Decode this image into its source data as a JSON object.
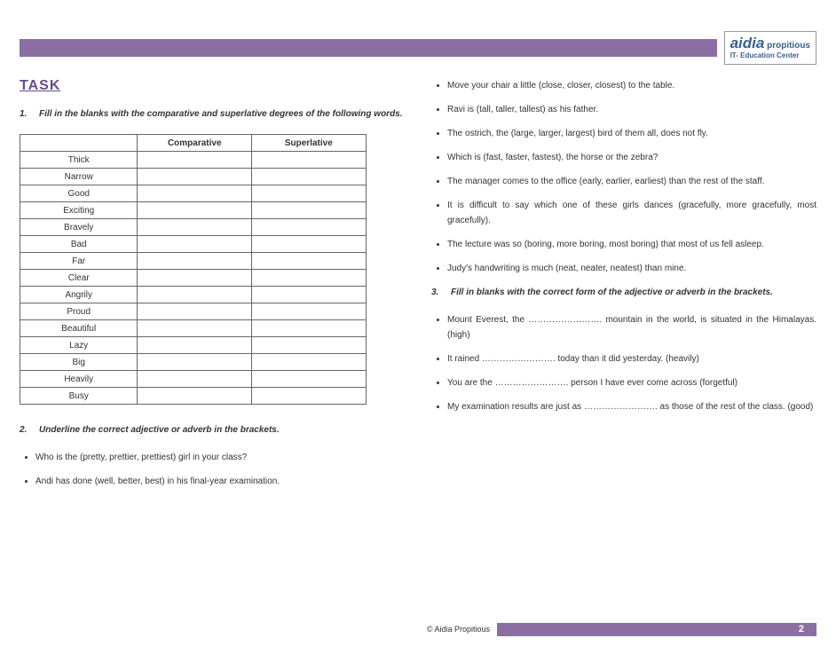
{
  "logo": {
    "brand": "aidia",
    "sub1": "propitious",
    "sub2": "IT- Education Center"
  },
  "colors": {
    "stripe": "#8b6fa3",
    "heading": "#6b4a8a",
    "logo_text": "#3b5f8a"
  },
  "task_heading": "TASK",
  "q1": {
    "num": "1.",
    "text": "Fill in the blanks with the comparative and superlative degrees of the following words.",
    "columns": [
      "",
      "Comparative",
      "Superlative"
    ],
    "words": [
      "Thick",
      "Narrow",
      "Good",
      "Exciting",
      "Bravely",
      "Bad",
      "Far",
      "Clear",
      "Angrily",
      "Proud",
      "Beautiful",
      "Lazy",
      "Big",
      "Heavily",
      "Busy"
    ]
  },
  "q2": {
    "num": "2.",
    "text": "Underline the correct adjective or adverb in the brackets.",
    "items_left": [
      "Who is the (pretty, prettier, prettiest) girl in your class?",
      "Andi has done (well, better, best) in his final-year examination."
    ],
    "items_right": [
      "Move your chair a little (close, closer, closest) to the table.",
      "Ravi is (tall, taller, tallest) as his father.",
      "The ostrich, the (large, larger, largest) bird of them all, does not fly.",
      "Which is (fast, faster, fastest), the horse or the zebra?",
      "The manager comes to the office (early, earlier, earliest) than the rest of the staff.",
      "It is difficult to say which one of these girls dances (gracefully, more gracefully, most gracefully).",
      "The lecture was so (boring, more boring, most boring) that most of us fell asleep.",
      "Judy's handwriting is much (neat, neater, neatest) than mine."
    ]
  },
  "q3": {
    "num": "3.",
    "text": "Fill in blanks with the correct form of the adjective or adverb in the brackets.",
    "items": [
      "Mount Everest, the ……………………. mountain in the world, is situated in the Himalayas. (high)",
      "It rained ……………………. today than it did yesterday. (heavily)",
      "You are the ……………………. person I have ever come across (forgetful)",
      "My examination results are just as ……………………. as those of the rest of the class. (good)"
    ]
  },
  "footer": {
    "copy": "© Aidia Propitious",
    "page": "2"
  }
}
